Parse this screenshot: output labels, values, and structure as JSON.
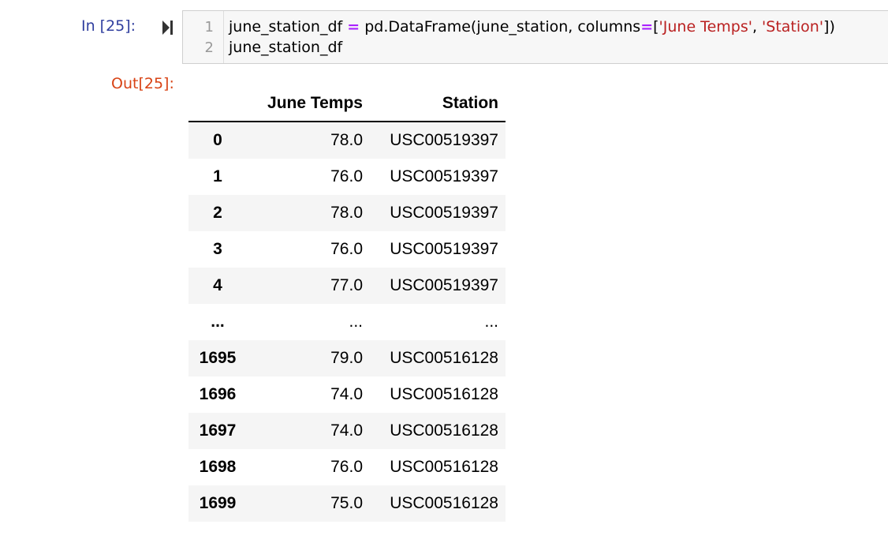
{
  "cell": {
    "in_prompt": "In [25]:",
    "out_prompt": "Out[25]:",
    "code_lines": [
      {
        "number": "1",
        "segments": [
          {
            "text": "june_station_df ",
            "kind": "plain"
          },
          {
            "text": "=",
            "kind": "op"
          },
          {
            "text": " pd.DataFrame(june_station, columns",
            "kind": "plain"
          },
          {
            "text": "=",
            "kind": "op"
          },
          {
            "text": "[",
            "kind": "plain"
          },
          {
            "text": "'June Temps'",
            "kind": "str"
          },
          {
            "text": ", ",
            "kind": "plain"
          },
          {
            "text": "'Station'",
            "kind": "str"
          },
          {
            "text": "])",
            "kind": "plain"
          }
        ]
      },
      {
        "number": "2",
        "segments": [
          {
            "text": "june_station_df",
            "kind": "plain"
          }
        ]
      }
    ]
  },
  "dataframe": {
    "columns": [
      "June Temps",
      "Station"
    ],
    "rows": [
      {
        "index": "0",
        "temp": "78.0",
        "station": "USC00519397"
      },
      {
        "index": "1",
        "temp": "76.0",
        "station": "USC00519397"
      },
      {
        "index": "2",
        "temp": "78.0",
        "station": "USC00519397"
      },
      {
        "index": "3",
        "temp": "76.0",
        "station": "USC00519397"
      },
      {
        "index": "4",
        "temp": "77.0",
        "station": "USC00519397"
      },
      {
        "index": "...",
        "temp": "...",
        "station": "..."
      },
      {
        "index": "1695",
        "temp": "79.0",
        "station": "USC00516128"
      },
      {
        "index": "1696",
        "temp": "74.0",
        "station": "USC00516128"
      },
      {
        "index": "1697",
        "temp": "74.0",
        "station": "USC00516128"
      },
      {
        "index": "1698",
        "temp": "76.0",
        "station": "USC00516128"
      },
      {
        "index": "1699",
        "temp": "75.0",
        "station": "USC00516128"
      }
    ]
  },
  "colors": {
    "in_prompt": "#303f9f",
    "out_prompt": "#d84315",
    "operator": "#aa22ff",
    "string": "#ba2121",
    "code_bg": "#f7f7f7",
    "row_stripe": "#f5f5f5"
  },
  "icons": {
    "run": "run-cell-icon"
  }
}
